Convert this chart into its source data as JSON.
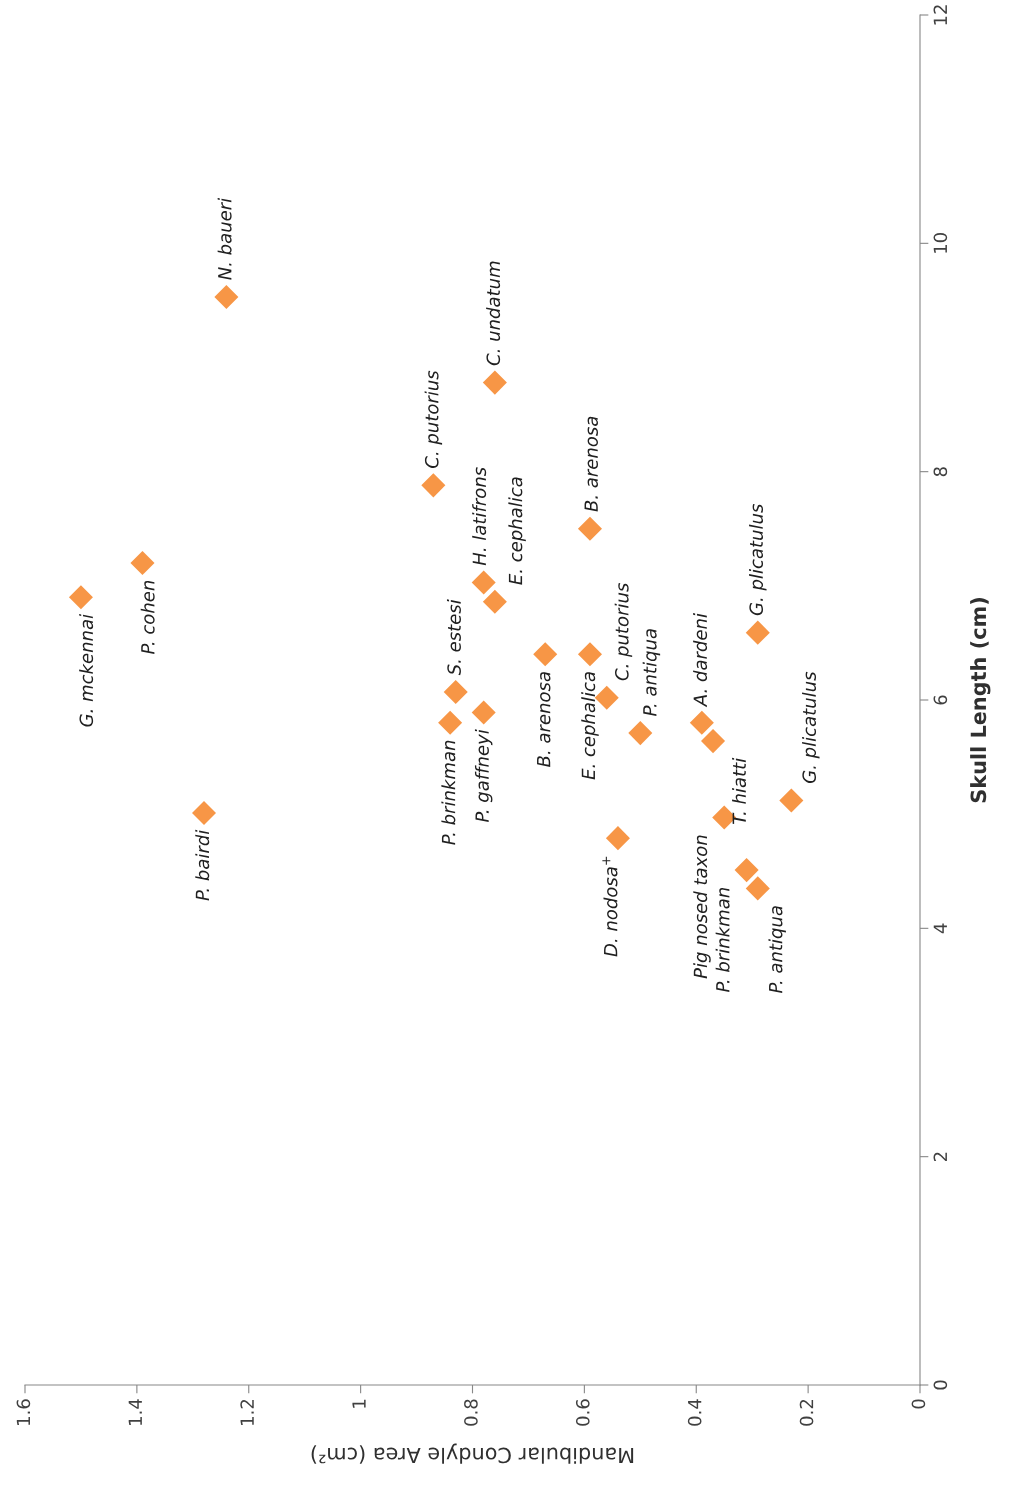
{
  "chart_data": {
    "type": "scatter",
    "xlabel": "Mandibular Condyle Area (cm²)",
    "ylabel": "Skull Length (cm)",
    "xlim": [
      1.6,
      0
    ],
    "xticks": [
      0,
      0.2,
      0.4,
      0.6,
      0.8,
      1,
      1.2,
      1.4,
      1.6
    ],
    "ylim": [
      0,
      12
    ],
    "yticks": [
      0,
      2,
      4,
      6,
      8,
      10,
      12
    ],
    "marker": "diamond",
    "grid": false,
    "series": [
      {
        "color": "#f79646",
        "x": [
          1.5,
          1.39,
          1.28,
          1.24,
          0.87,
          0.76,
          0.78,
          0.76,
          0.59,
          0.83,
          0.84,
          0.78,
          0.67,
          0.59,
          0.56,
          0.5,
          0.39,
          0.37,
          0.29,
          0.23,
          0.54,
          0.35,
          0.31,
          0.29
        ],
        "values": [
          6.9,
          7.2,
          5.01,
          9.53,
          7.88,
          8.78,
          7.03,
          6.86,
          7.5,
          6.07,
          5.8,
          5.89,
          6.4,
          6.4,
          6.02,
          5.71,
          5.8,
          5.64,
          6.59,
          5.12,
          4.79,
          4.97,
          4.51,
          4.35
        ]
      }
    ],
    "annotations": [
      {
        "text": "G. mckennai",
        "x": 1.5,
        "y": 6.9
      },
      {
        "text": "P. cohen",
        "x": 1.39,
        "y": 7.2
      },
      {
        "text": "P. bairdi",
        "x": 1.28,
        "y": 5.01
      },
      {
        "text": "N. baueri",
        "x": 1.24,
        "y": 9.53
      },
      {
        "text": "C. putorius",
        "x": 0.87,
        "y": 7.88
      },
      {
        "text": "C. undatum",
        "x": 0.76,
        "y": 8.78
      },
      {
        "text": "H. latifrons",
        "x": 0.78,
        "y": 7.03
      },
      {
        "text": "E. cephalica",
        "x": 0.76,
        "y": 6.86
      },
      {
        "text": "B. arenosa",
        "x": 0.59,
        "y": 7.5
      },
      {
        "text": "S. estesi",
        "x": 0.83,
        "y": 6.07
      },
      {
        "text": "P. brinkman",
        "x": 0.84,
        "y": 5.8
      },
      {
        "text": "P. gaffneyi",
        "x": 0.78,
        "y": 5.89
      },
      {
        "text": "B. arenosa",
        "x": 0.67,
        "y": 6.4
      },
      {
        "text": "E. cephalica",
        "x": 0.59,
        "y": 6.4
      },
      {
        "text": "C. putorius",
        "x": 0.56,
        "y": 6.02
      },
      {
        "text": "P. antiqua",
        "x": 0.5,
        "y": 5.71
      },
      {
        "text": "A. dardeni",
        "x": 0.39,
        "y": 5.8
      },
      {
        "text": "T. hiatti",
        "x": 0.37,
        "y": 5.64
      },
      {
        "text": "G. plicatulus",
        "x": 0.29,
        "y": 6.59
      },
      {
        "text": "G. plicatulus",
        "x": 0.23,
        "y": 5.12
      },
      {
        "text": "D. nodosa$^{+}$",
        "x": 0.54,
        "y": 4.79
      },
      {
        "text": "Pig nosed taxon",
        "x": 0.35,
        "y": 4.97
      },
      {
        "text": "P. brinkman",
        "x": 0.31,
        "y": 4.51
      },
      {
        "text": "P. antiqua",
        "x": 0.29,
        "y": 4.35
      }
    ]
  }
}
